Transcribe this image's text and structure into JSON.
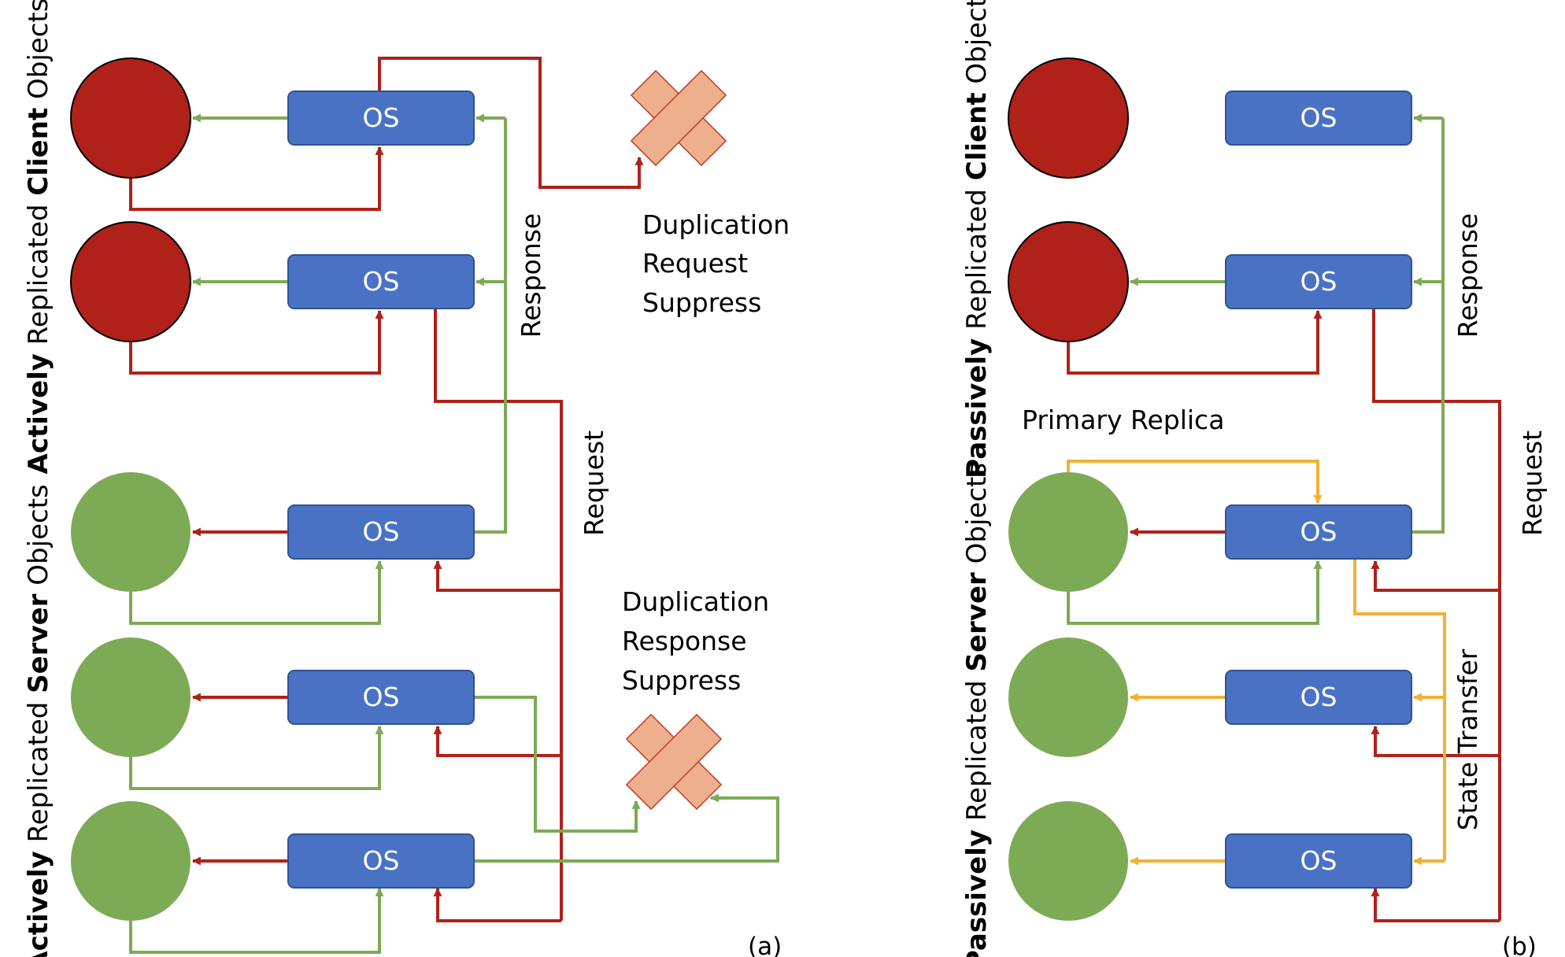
{
  "box_label": "OS",
  "left": {
    "client_title": {
      "prefix": "Actively",
      "middle": " Replicated ",
      "bold": "Client",
      "suffix": " Objects"
    },
    "server_title": {
      "prefix": "Actively",
      "middle": " Replicated ",
      "bold": "Server",
      "suffix": " Objects"
    },
    "response_label": "Response",
    "request_label": "Request",
    "dup_request": [
      "Duplication",
      "Request",
      "Suppress"
    ],
    "dup_response": [
      "Duplication",
      "Response",
      "Suppress"
    ],
    "panel_label": "(a)"
  },
  "right": {
    "client_title": {
      "prefix": "Passively",
      "middle": " Replicated ",
      "bold": "Client",
      "suffix": " Objects"
    },
    "server_title": {
      "prefix": "Passively",
      "middle": " Replicated ",
      "bold": "Server",
      "suffix": " Objects"
    },
    "response_label": "Response",
    "request_label": "Request",
    "state_transfer_label": "State Transfer",
    "primary_replica_label": "Primary Replica",
    "panel_label": "(b)"
  },
  "colors": {
    "client": "#B0211A",
    "server": "#7DAA55",
    "os_box": "#4A72C4",
    "cross": "#EEB08C",
    "request_line": "#B0211A",
    "response_line": "#7DAA55",
    "state_line": "#F2B134"
  }
}
